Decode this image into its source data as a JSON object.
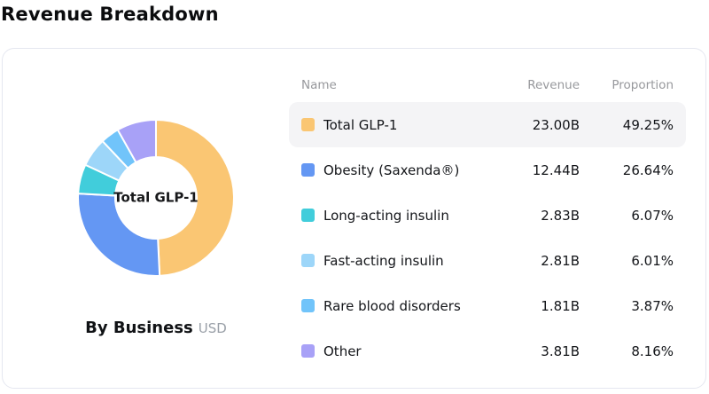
{
  "page": {
    "title": "Revenue Breakdown"
  },
  "chart_data": {
    "type": "pie",
    "variant": "donut",
    "title": "Revenue Breakdown",
    "center_label": "Total GLP-1",
    "footer": {
      "label": "By Business",
      "unit": "USD"
    },
    "columns": [
      "Name",
      "Revenue",
      "Proportion"
    ],
    "legend_position": "right-table",
    "start_angle_deg": 0,
    "direction": "clockwise",
    "series": [
      {
        "name": "Total GLP-1",
        "revenue": "23.00B",
        "revenue_value_b": 23.0,
        "proportion": "49.25%",
        "value_pct": 49.25,
        "color": "#FAC673",
        "highlighted": true
      },
      {
        "name": "Obesity (Saxenda®)",
        "revenue": "12.44B",
        "revenue_value_b": 12.44,
        "proportion": "26.64%",
        "value_pct": 26.64,
        "color": "#6497F3",
        "highlighted": false
      },
      {
        "name": "Long-acting insulin",
        "revenue": "2.83B",
        "revenue_value_b": 2.83,
        "proportion": "6.07%",
        "value_pct": 6.07,
        "color": "#41CDDB",
        "highlighted": false
      },
      {
        "name": "Fast-acting insulin",
        "revenue": "2.81B",
        "revenue_value_b": 2.81,
        "proportion": "6.01%",
        "value_pct": 6.01,
        "color": "#9DD6F9",
        "highlighted": false
      },
      {
        "name": "Rare blood disorders",
        "revenue": "1.81B",
        "revenue_value_b": 1.81,
        "proportion": "3.87%",
        "value_pct": 3.87,
        "color": "#71C4FA",
        "highlighted": false
      },
      {
        "name": "Other",
        "revenue": "3.81B",
        "revenue_value_b": 3.81,
        "proportion": "8.16%",
        "value_pct": 8.16,
        "color": "#A8A1F7",
        "highlighted": false
      }
    ],
    "colors": {
      "row_highlight_bg": "#F4F4F6",
      "header_text": "#97989C",
      "card_border": "#E5E7F0"
    }
  }
}
